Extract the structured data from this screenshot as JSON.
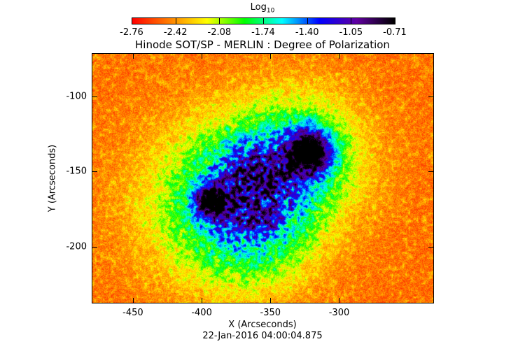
{
  "chart_data": {
    "type": "heatmap",
    "title": "Hinode SOT/SP - MERLIN : Degree of Polarization",
    "xlabel": "X (Arcseconds)",
    "ylabel": "Y (Arcseconds)",
    "xlim": [
      -480,
      -231
    ],
    "ylim": [
      -238,
      -71
    ],
    "xticks": [
      "-450",
      "-400",
      "-350",
      "-300"
    ],
    "xtick_values": [
      -450,
      -400,
      -350,
      -300
    ],
    "yticks": [
      "-100",
      "-150",
      "-200"
    ],
    "ytick_values": [
      -100,
      -150,
      -200
    ],
    "colorbar": {
      "label": "Log",
      "label_sub": "10",
      "ticks": [
        "-2.76",
        "-2.42",
        "-2.08",
        "-1.74",
        "-1.40",
        "-1.05",
        "-0.71"
      ],
      "range": [
        -2.76,
        -0.71
      ],
      "colors": [
        "#ff0000",
        "#ff8000",
        "#ffff00",
        "#00ff00",
        "#00ffff",
        "#0000ff",
        "#6000a0",
        "#000000"
      ]
    },
    "features": [
      {
        "name": "",
        "type": "sunspot",
        "x": -322,
        "y": -136
      },
      {
        "name": "",
        "type": "sunspot",
        "x": -394,
        "y": -169
      }
    ],
    "timestamp": "22-Jan-2016 04:00:04.875"
  }
}
